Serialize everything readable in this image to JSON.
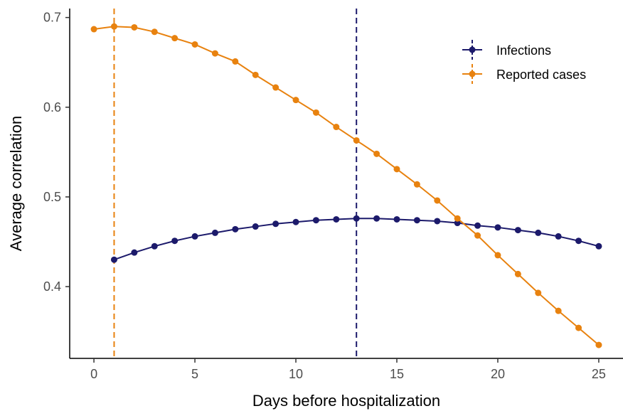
{
  "chart_data": {
    "type": "line",
    "xlabel": "Days before hospitalization",
    "ylabel": "Average correlation",
    "xlim": [
      -1.2,
      26.2
    ],
    "ylim": [
      0.32,
      0.71
    ],
    "xticks": [
      0,
      5,
      10,
      15,
      20,
      25
    ],
    "yticks": [
      0.4,
      0.5,
      0.6,
      0.7
    ],
    "xtick_labels": [
      "0",
      "5",
      "10",
      "15",
      "20",
      "25"
    ],
    "ytick_labels": [
      "0.4",
      "0.5",
      "0.6",
      "0.7"
    ],
    "grid": false,
    "legend_position": "top-right",
    "series": [
      {
        "name": "Infections",
        "color": "#1c1a6b",
        "x": [
          1,
          2,
          3,
          4,
          5,
          6,
          7,
          8,
          9,
          10,
          11,
          12,
          13,
          14,
          15,
          16,
          17,
          18,
          19,
          20,
          21,
          22,
          23,
          24,
          25
        ],
        "y": [
          0.43,
          0.438,
          0.445,
          0.451,
          0.456,
          0.46,
          0.464,
          0.467,
          0.47,
          0.472,
          0.474,
          0.475,
          0.476,
          0.476,
          0.475,
          0.474,
          0.473,
          0.471,
          0.468,
          0.466,
          0.463,
          0.46,
          0.456,
          0.451,
          0.445
        ],
        "vline": 13
      },
      {
        "name": "Reported cases",
        "color": "#e8820f",
        "x": [
          0,
          1,
          2,
          3,
          4,
          5,
          6,
          7,
          8,
          9,
          10,
          11,
          12,
          13,
          14,
          15,
          16,
          17,
          18,
          19,
          20,
          21,
          22,
          23,
          24,
          25
        ],
        "y": [
          0.687,
          0.69,
          0.689,
          0.684,
          0.677,
          0.67,
          0.66,
          0.651,
          0.636,
          0.622,
          0.608,
          0.594,
          0.578,
          0.563,
          0.548,
          0.531,
          0.514,
          0.496,
          0.476,
          0.457,
          0.435,
          0.414,
          0.393,
          0.373,
          0.354,
          0.335
        ],
        "vline": 1
      }
    ]
  }
}
